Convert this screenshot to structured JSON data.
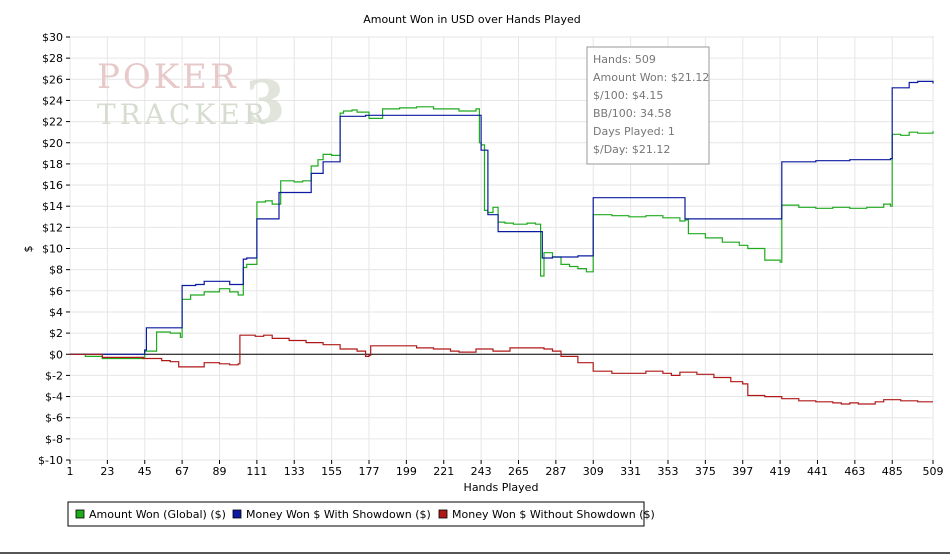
{
  "watermark": {
    "line1": "POKER",
    "line2": "TRACKER",
    "mark": "3"
  },
  "stats_box": {
    "lines": [
      "Hands: 509",
      "Amount Won: $21.12",
      "$/100: $4.15",
      "BB/100: 34.58",
      "Days Played: 1",
      "$/Day: $21.12"
    ]
  },
  "colors": {
    "global": "#1faa1f",
    "showdown": "#0b1aa0",
    "non_showdown": "#b01818",
    "grid": "#e6e6e6",
    "zero_line": "#000000"
  },
  "chart_data": {
    "type": "line",
    "title": "Amount Won in USD over Hands Played",
    "xlabel": "Hands Played",
    "ylabel": "$",
    "xlim": [
      1,
      509
    ],
    "ylim": [
      -10,
      30
    ],
    "x_ticks": [
      1,
      23,
      45,
      67,
      89,
      111,
      133,
      155,
      177,
      199,
      221,
      243,
      265,
      287,
      309,
      331,
      353,
      375,
      397,
      419,
      441,
      463,
      485,
      509
    ],
    "y_ticks": [
      30,
      28,
      26,
      24,
      22,
      20,
      18,
      16,
      14,
      12,
      10,
      8,
      6,
      4,
      2,
      0,
      -2,
      -4,
      -6,
      -8,
      -10
    ],
    "y_tick_labels": [
      "$30",
      "$28",
      "$26",
      "$24",
      "$22",
      "$20",
      "$18",
      "$16",
      "$14",
      "$12",
      "$10",
      "$8",
      "$6",
      "$4",
      "$2",
      "$0",
      "$-2",
      "$-4",
      "$-6",
      "$-8",
      "$-10"
    ],
    "grid": true,
    "legend_position": "bottom-left",
    "series": [
      {
        "name": "Amount Won (Global) ($)",
        "color": "#1faa1f",
        "x": [
          1,
          10,
          20,
          30,
          44,
          45,
          52,
          60,
          66,
          67,
          72,
          80,
          89,
          95,
          100,
          103,
          105,
          111,
          116,
          120,
          125,
          133,
          138,
          143,
          147,
          150,
          155,
          160,
          162,
          167,
          170,
          177,
          185,
          195,
          205,
          215,
          230,
          240,
          242,
          243,
          245,
          247,
          250,
          253,
          257,
          262,
          270,
          275,
          278,
          280,
          285,
          290,
          295,
          300,
          305,
          309,
          320,
          330,
          340,
          350,
          360,
          363,
          365,
          375,
          385,
          395,
          400,
          410,
          419,
          420,
          430,
          440,
          450,
          460,
          470,
          480,
          484,
          485,
          490,
          495,
          500,
          509
        ],
        "y": [
          0,
          -0.2,
          -0.4,
          -0.4,
          -0.3,
          0.3,
          2.1,
          2.0,
          1.6,
          5.2,
          5.6,
          5.9,
          6.2,
          5.9,
          5.6,
          8.2,
          8.5,
          14.4,
          14.5,
          14.2,
          16.4,
          16.3,
          16.4,
          17.8,
          18.4,
          18.9,
          18.8,
          22.8,
          23.0,
          23.1,
          22.9,
          22.3,
          23.2,
          23.3,
          23.4,
          23.2,
          23.0,
          23.2,
          20.0,
          19.8,
          13.6,
          13.4,
          13.9,
          12.5,
          12.4,
          12.3,
          12.4,
          12.3,
          7.4,
          9.6,
          9.2,
          8.5,
          8.3,
          8.1,
          7.8,
          13.2,
          13.1,
          13.0,
          13.1,
          12.9,
          12.6,
          12.7,
          11.4,
          11.0,
          10.6,
          10.3,
          10.0,
          8.9,
          8.7,
          14.1,
          13.9,
          13.8,
          13.9,
          13.8,
          13.9,
          14.2,
          14.0,
          20.8,
          20.7,
          21.0,
          20.9,
          21.1
        ]
      },
      {
        "name": "Money Won $ With Showdown ($)",
        "color": "#0b1aa0",
        "x": [
          1,
          20,
          44,
          45,
          46,
          66,
          67,
          75,
          80,
          89,
          95,
          100,
          103,
          105,
          111,
          120,
          124,
          133,
          138,
          143,
          147,
          150,
          155,
          160,
          167,
          175,
          177,
          185,
          200,
          215,
          230,
          240,
          242,
          243,
          247,
          250,
          253,
          257,
          265,
          278,
          279,
          285,
          290,
          300,
          309,
          330,
          355,
          363,
          380,
          400,
          419,
          420,
          440,
          460,
          470,
          484,
          485,
          494,
          495,
          500,
          509
        ],
        "y": [
          0,
          0,
          0,
          0.4,
          2.5,
          2.5,
          6.5,
          6.6,
          6.9,
          6.9,
          6.6,
          6.6,
          9.0,
          9.1,
          12.8,
          12.8,
          15.3,
          15.3,
          15.3,
          17.1,
          17.1,
          18.2,
          18.2,
          22.5,
          22.5,
          22.6,
          22.6,
          22.6,
          22.6,
          22.6,
          22.6,
          22.6,
          22.6,
          19.3,
          13.2,
          13.2,
          11.6,
          11.6,
          11.6,
          11.6,
          9.1,
          9.2,
          9.2,
          9.3,
          14.8,
          14.8,
          14.8,
          12.8,
          12.8,
          12.8,
          12.8,
          18.2,
          18.3,
          18.4,
          18.4,
          18.5,
          25.2,
          25.2,
          25.7,
          25.8,
          25.6
        ]
      },
      {
        "name": "Money Won $ Without Showdown ($)",
        "color": "#b01818",
        "x": [
          1,
          20,
          44,
          55,
          60,
          65,
          70,
          80,
          89,
          95,
          100,
          101,
          110,
          115,
          120,
          130,
          140,
          150,
          160,
          170,
          175,
          177,
          178,
          185,
          195,
          205,
          215,
          225,
          230,
          240,
          250,
          260,
          270,
          280,
          285,
          290,
          300,
          309,
          320,
          330,
          340,
          350,
          355,
          360,
          370,
          380,
          390,
          397,
          400,
          410,
          420,
          430,
          440,
          450,
          455,
          460,
          465,
          470,
          475,
          480,
          490,
          500,
          509
        ],
        "y": [
          0,
          -0.3,
          -0.4,
          -0.6,
          -0.7,
          -1.2,
          -1.2,
          -0.8,
          -0.9,
          -1.0,
          -0.9,
          1.8,
          1.7,
          1.8,
          1.5,
          1.3,
          1.1,
          0.9,
          0.5,
          0.3,
          -0.2,
          -0.1,
          0.8,
          0.8,
          0.8,
          0.6,
          0.5,
          0.3,
          0.2,
          0.5,
          0.3,
          0.6,
          0.6,
          0.5,
          0.3,
          -0.2,
          -0.8,
          -1.6,
          -1.8,
          -1.8,
          -1.6,
          -1.8,
          -2.0,
          -1.7,
          -1.9,
          -2.2,
          -2.6,
          -2.8,
          -3.9,
          -4.0,
          -4.2,
          -4.4,
          -4.5,
          -4.6,
          -4.7,
          -4.6,
          -4.7,
          -4.7,
          -4.5,
          -4.3,
          -4.4,
          -4.5,
          -4.5
        ]
      }
    ]
  }
}
